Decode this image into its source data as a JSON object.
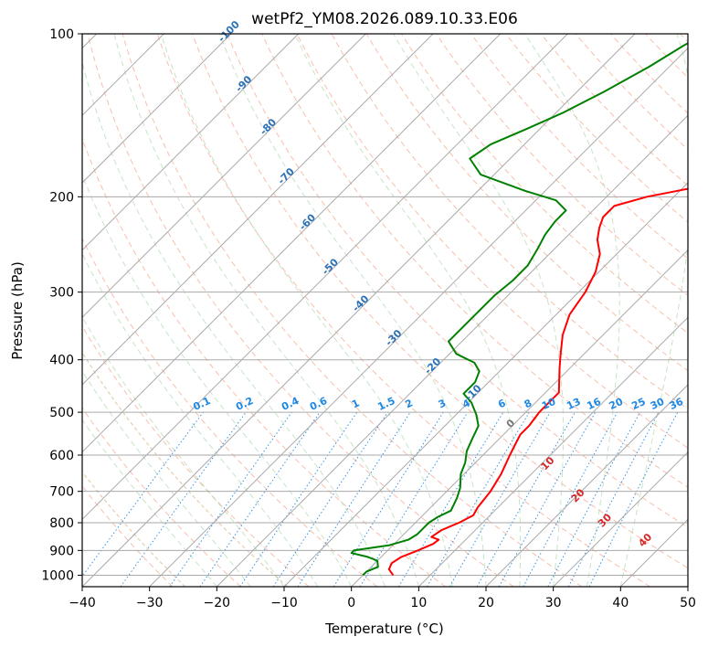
{
  "chart_data": {
    "type": "line",
    "subtype": "skew-T log-P diagram",
    "title": "wetPf2_YM08.2026.089.10.33.E06",
    "xlabel": "Temperature (°C)",
    "ylabel": "Pressure (hPa)",
    "xlim": [
      -40,
      50
    ],
    "ylim_pressure": [
      1050,
      100
    ],
    "x_ticks": [
      -40,
      -30,
      -20,
      -10,
      0,
      10,
      20,
      30,
      40,
      50
    ],
    "x_tick_labels": [
      "−40",
      "−30",
      "−20",
      "−10",
      "0",
      "10",
      "20",
      "30",
      "40",
      "50"
    ],
    "y_ticks": [
      1000,
      900,
      800,
      700,
      600,
      500,
      400,
      300,
      200,
      100
    ],
    "y_tick_labels": [
      "1000",
      "900",
      "800",
      "700",
      "600",
      "500",
      "400",
      "300",
      "200",
      "100"
    ],
    "grid": true,
    "background_lines": {
      "isotherms_skewed": true,
      "dry_adiabats": true,
      "moist_adiabats": true,
      "mixing_ratio_lines": true
    },
    "mixing_ratio_labels": [
      "0.1",
      "0.2",
      "0.4",
      "0.6",
      "1",
      "1.5",
      "2",
      "3",
      "4",
      "6",
      "8",
      "10",
      "13",
      "16",
      "20",
      "25",
      "30",
      "36"
    ],
    "mixing_ratio_values": [
      0.1,
      0.2,
      0.4,
      0.6,
      1,
      1.5,
      2,
      3,
      4,
      6,
      8,
      10,
      13,
      16,
      20,
      25,
      30,
      36
    ],
    "isotherm_labels": [
      "-100",
      "-90",
      "-80",
      "-70",
      "-60",
      "-50",
      "-40",
      "-30",
      "-20",
      "-10"
    ],
    "isotherm_label_values": [
      -100,
      -90,
      -80,
      -70,
      -60,
      -50,
      -40,
      -30,
      -20,
      -10
    ],
    "isotherm_label_pressures": [
      100,
      125,
      150,
      185,
      225,
      272,
      318,
      368,
      415,
      465
    ],
    "warm_isotherm_labels": [
      "0",
      "10",
      "20",
      "30",
      "40"
    ],
    "warm_isotherm_label_points": [
      [
        24,
        530
      ],
      [
        29.5,
        628
      ],
      [
        34,
        720
      ],
      [
        38,
        800
      ],
      [
        44,
        870
      ]
    ],
    "series": [
      {
        "name": "Temperature",
        "color": "#ff0000",
        "points": [
          [
            4.5,
            1000
          ],
          [
            3,
            975
          ],
          [
            2.5,
            950
          ],
          [
            3,
            925
          ],
          [
            4.5,
            900
          ],
          [
            5.8,
            875
          ],
          [
            6,
            860
          ],
          [
            4.5,
            850
          ],
          [
            5,
            825
          ],
          [
            6.5,
            800
          ],
          [
            7.5,
            775
          ],
          [
            7,
            750
          ],
          [
            6.5,
            700
          ],
          [
            5.5,
            650
          ],
          [
            4,
            600
          ],
          [
            2.5,
            550
          ],
          [
            2.5,
            530
          ],
          [
            2,
            500
          ],
          [
            2,
            480
          ],
          [
            2,
            460
          ],
          [
            0.5,
            440
          ],
          [
            -1.5,
            415
          ],
          [
            -3.5,
            390
          ],
          [
            -6,
            360
          ],
          [
            -8,
            330
          ],
          [
            -9,
            300
          ],
          [
            -10.5,
            275
          ],
          [
            -12.5,
            255
          ],
          [
            -15,
            240
          ],
          [
            -16.5,
            228
          ],
          [
            -17.5,
            218
          ],
          [
            -17.5,
            208
          ],
          [
            -14,
            200
          ],
          [
            -6.5,
            190
          ],
          [
            -4,
            178
          ],
          [
            -3,
            165
          ],
          [
            -2.5,
            150
          ],
          [
            -2.5,
            135
          ],
          [
            -2,
            125
          ],
          [
            -3,
            115
          ],
          [
            -4.5,
            108
          ],
          [
            -5.5,
            100
          ]
        ]
      },
      {
        "name": "Dewpoint",
        "color": "#008000",
        "points": [
          [
            0,
            1000
          ],
          [
            0,
            985
          ],
          [
            1,
            965
          ],
          [
            0,
            940
          ],
          [
            -2,
            925
          ],
          [
            -5,
            910
          ],
          [
            -5,
            900
          ],
          [
            -0.5,
            880
          ],
          [
            1.5,
            860
          ],
          [
            2,
            840
          ],
          [
            2,
            820
          ],
          [
            2,
            800
          ],
          [
            2.5,
            780
          ],
          [
            3.5,
            760
          ],
          [
            2.5,
            720
          ],
          [
            1.5,
            690
          ],
          [
            -0.5,
            650
          ],
          [
            -1.5,
            620
          ],
          [
            -3,
            590
          ],
          [
            -4,
            560
          ],
          [
            -5,
            530
          ],
          [
            -7,
            505
          ],
          [
            -9.5,
            480
          ],
          [
            -12,
            462
          ],
          [
            -12,
            440
          ],
          [
            -13,
            420
          ],
          [
            -15,
            405
          ],
          [
            -19,
            390
          ],
          [
            -22,
            370
          ],
          [
            -22,
            345
          ],
          [
            -22,
            325
          ],
          [
            -22,
            305
          ],
          [
            -21.5,
            285
          ],
          [
            -21.5,
            268
          ],
          [
            -22.5,
            250
          ],
          [
            -23.5,
            235
          ],
          [
            -24,
            222
          ],
          [
            -24,
            212
          ],
          [
            -27,
            203
          ],
          [
            -33,
            195
          ],
          [
            -42,
            182
          ],
          [
            -46,
            170
          ],
          [
            -45,
            160
          ],
          [
            -42,
            150
          ],
          [
            -39,
            140
          ],
          [
            -36,
            128
          ],
          [
            -33,
            115
          ],
          [
            -31,
            105
          ],
          [
            -29.5,
            100
          ]
        ]
      }
    ]
  }
}
